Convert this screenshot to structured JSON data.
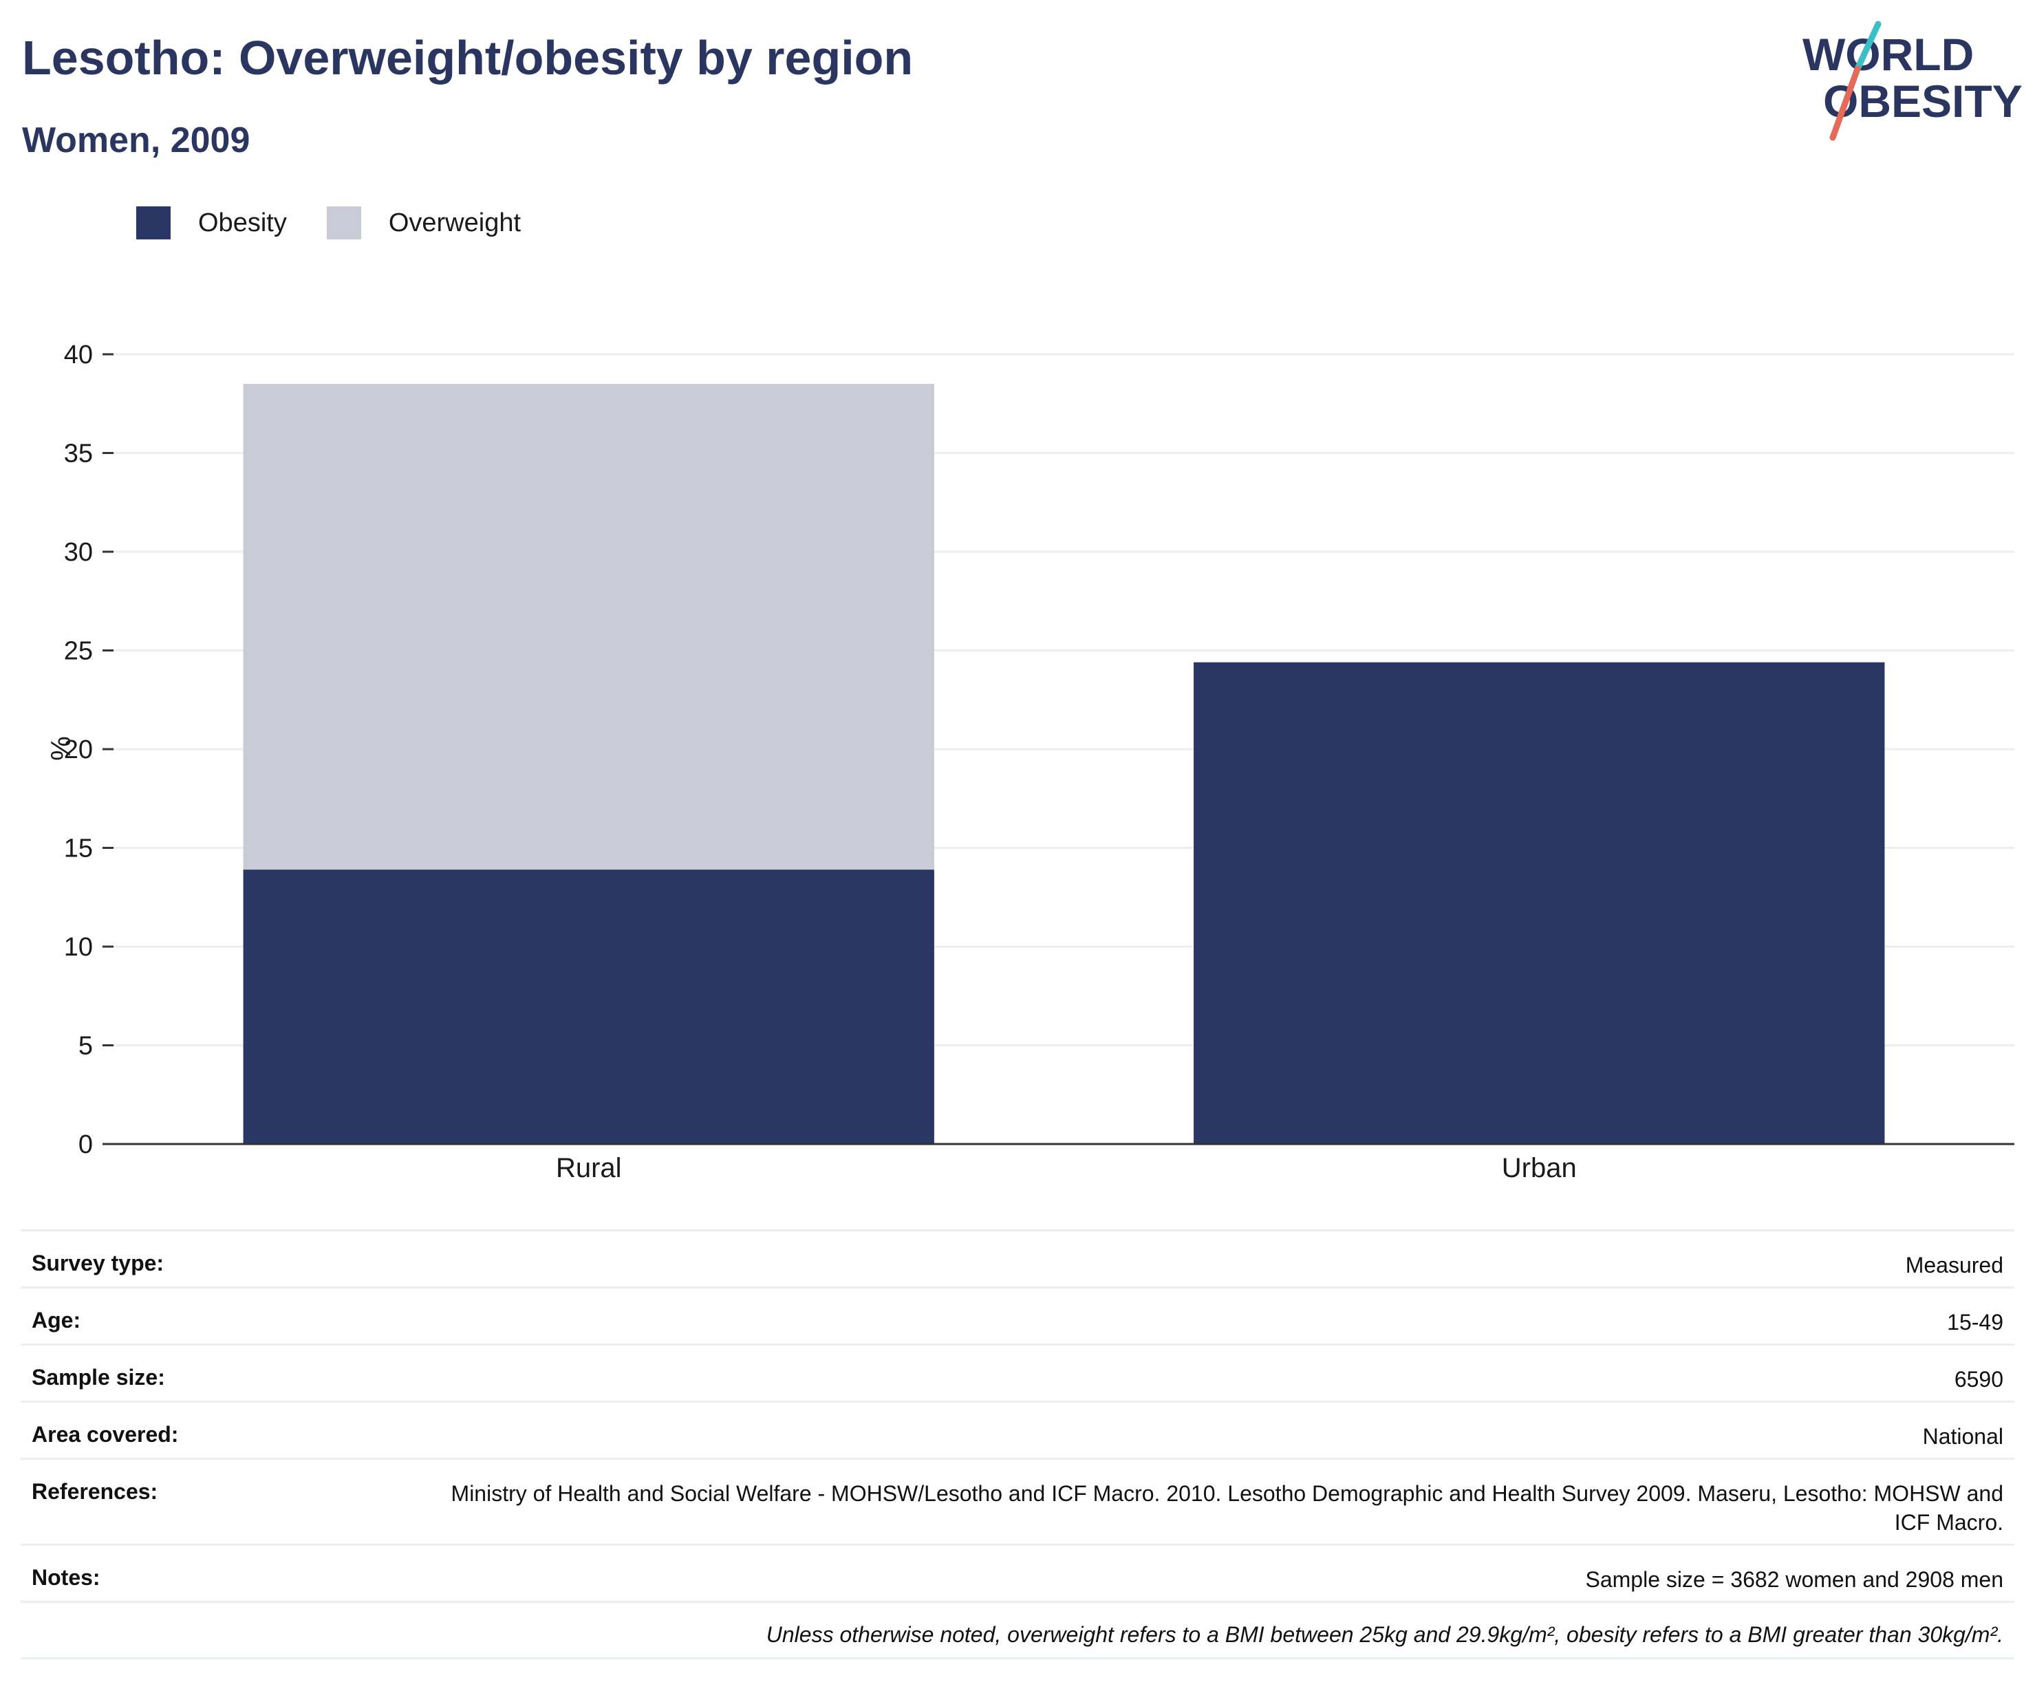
{
  "header": {
    "title": "Lesotho: Overweight/obesity by region",
    "subtitle": "Women, 2009"
  },
  "logo": {
    "line1": "WORLD",
    "line2": "OBESITY",
    "colors": {
      "text": "#2a365f",
      "slash_top": "#3bbfc6",
      "slash_bottom": "#e56a5a"
    }
  },
  "colors": {
    "obesity": "#2a3663",
    "overweight": "#c9ccd7",
    "grid": "#eceef2",
    "axis": "#333333"
  },
  "chart_data": {
    "type": "bar",
    "stacked": true,
    "categories": [
      "Rural",
      "Urban"
    ],
    "series": [
      {
        "name": "Obesity",
        "values": [
          13.9,
          24.4
        ]
      },
      {
        "name": "Overweight",
        "values": [
          24.6,
          0
        ]
      }
    ],
    "ylabel": "%",
    "xlabel": "",
    "ylim": [
      0,
      40
    ],
    "yticks": [
      0,
      5,
      10,
      15,
      20,
      25,
      30,
      35,
      40
    ],
    "grid": true,
    "legend_position": "top-left"
  },
  "info_table": [
    {
      "label": "Survey type:",
      "value": "Measured"
    },
    {
      "label": "Age:",
      "value": "15-49"
    },
    {
      "label": "Sample size:",
      "value": "6590"
    },
    {
      "label": "Area covered:",
      "value": "National"
    },
    {
      "label": "References:",
      "value": "Ministry of Health and Social Welfare - MOHSW/Lesotho and ICF Macro. 2010. Lesotho Demographic and Health Survey 2009. Maseru, Lesotho: MOHSW and ICF Macro."
    },
    {
      "label": "Notes:",
      "value": "Sample size = 3682 women and 2908 men"
    }
  ],
  "footnote": "Unless otherwise noted, overweight refers to a BMI between 25kg and 29.9kg/m², obesity refers to a BMI greater than 30kg/m²."
}
